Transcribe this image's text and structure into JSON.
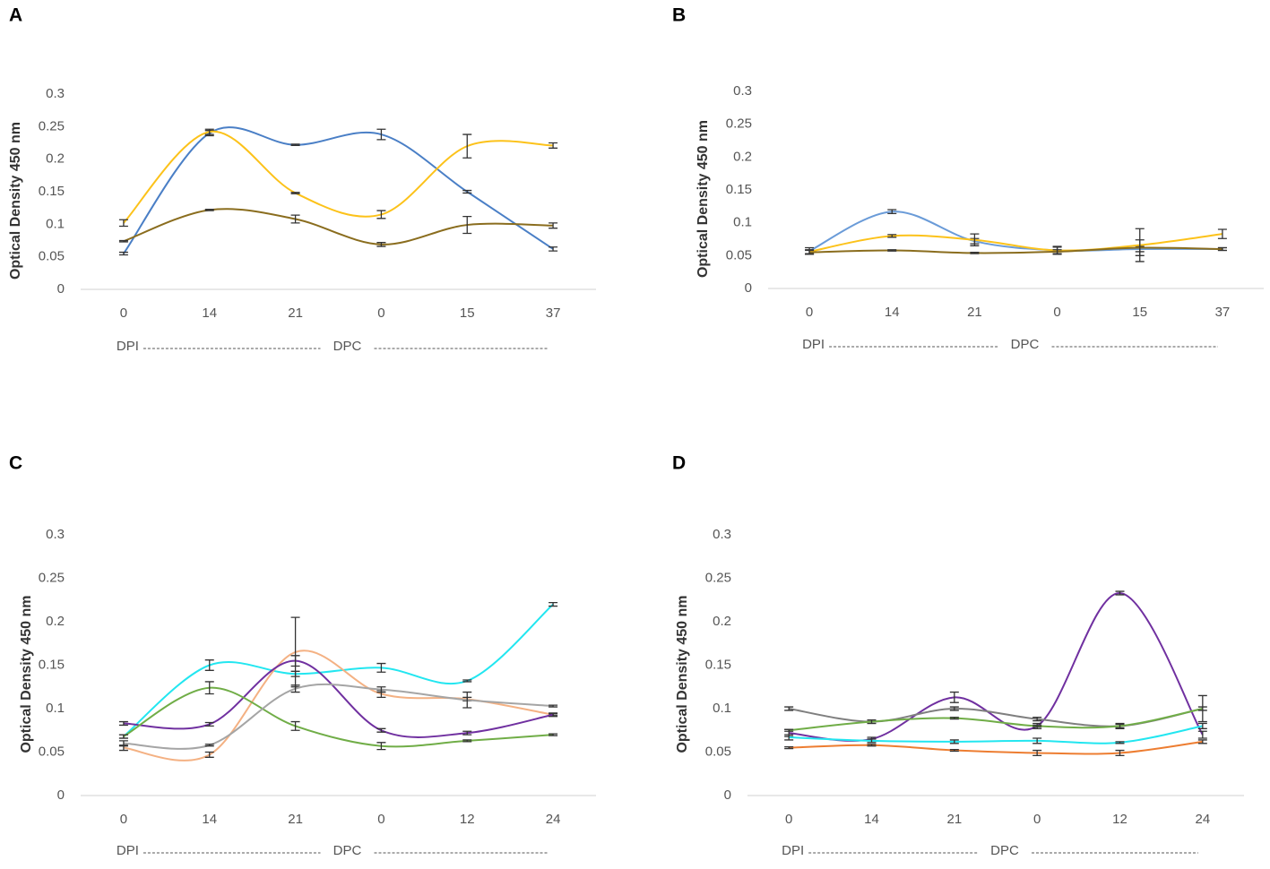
{
  "chart_data": [
    {
      "type": "line",
      "panel": "A",
      "y_label": "Optical Density 450 nm",
      "categories": [
        "0",
        "14",
        "21",
        "0",
        "15",
        "37"
      ],
      "phase_labels": [
        "DPI",
        "DPC"
      ],
      "ylim": [
        0,
        0.3
      ],
      "yticks": [
        0,
        0.05,
        0.1,
        0.15,
        0.2,
        0.25,
        0.3
      ],
      "grid": false,
      "series": [
        {
          "color": "#4a7fc6",
          "values": [
            0.055,
            0.24,
            0.222,
            0.238,
            0.15,
            0.062
          ],
          "errors": [
            0.002,
            0.004,
            0.001,
            0.008,
            0.002,
            0.003
          ]
        },
        {
          "color": "#fcc21a",
          "values": [
            0.102,
            0.242,
            0.148,
            0.115,
            0.22,
            0.221
          ],
          "errors": [
            0.005,
            0.004,
            0.001,
            0.006,
            0.018,
            0.004
          ]
        },
        {
          "color": "#8a6d1e",
          "values": [
            0.074,
            0.122,
            0.108,
            0.069,
            0.099,
            0.098
          ],
          "errors": [
            0.001,
            0.001,
            0.006,
            0.003,
            0.013,
            0.004
          ]
        }
      ]
    },
    {
      "type": "line",
      "panel": "B",
      "y_label": "Optical Density 450 nm",
      "categories": [
        "0",
        "14",
        "21",
        "0",
        "15",
        "37"
      ],
      "phase_labels": [
        "DPI",
        "DPC"
      ],
      "ylim": [
        0,
        0.3
      ],
      "yticks": [
        0,
        0.05,
        0.1,
        0.15,
        0.2,
        0.25,
        0.3
      ],
      "grid": false,
      "series": [
        {
          "color": "#6a9bd8",
          "values": [
            0.057,
            0.117,
            0.072,
            0.058,
            0.06,
            0.06
          ],
          "errors": [
            0.005,
            0.003,
            0.004,
            0.005,
            0.004,
            0.002
          ]
        },
        {
          "color": "#fcc21a",
          "values": [
            0.056,
            0.08,
            0.074,
            0.058,
            0.066,
            0.083
          ],
          "errors": [
            0.003,
            0.002,
            0.009,
            0.006,
            0.025,
            0.007
          ]
        },
        {
          "color": "#8a6d1e",
          "values": [
            0.055,
            0.058,
            0.054,
            0.056,
            0.062,
            0.06
          ],
          "errors": [
            0.003,
            0.001,
            0.001,
            0.003,
            0.012,
            0.002
          ]
        }
      ]
    },
    {
      "type": "line",
      "panel": "C",
      "y_label": "Optical Density 450 nm",
      "categories": [
        "0",
        "14",
        "21",
        "0",
        "12",
        "24"
      ],
      "phase_labels": [
        "DPI",
        "DPC"
      ],
      "ylim": [
        0,
        0.3
      ],
      "yticks": [
        0,
        0.05,
        0.1,
        0.15,
        0.2,
        0.25,
        0.3
      ],
      "grid": false,
      "series": [
        {
          "color": "#22e6f0",
          "values": [
            0.068,
            0.15,
            0.14,
            0.147,
            0.132,
            0.22
          ],
          "errors": [
            0.002,
            0.006,
            0.003,
            0.005,
            0.001,
            0.002
          ]
        },
        {
          "color": "#f4b183",
          "values": [
            0.055,
            0.047,
            0.165,
            0.117,
            0.111,
            0.093
          ],
          "errors": [
            0.003,
            0.003,
            0.04,
            0.004,
            0.002,
            0.001
          ]
        },
        {
          "color": "#7030a0",
          "values": [
            0.083,
            0.082,
            0.155,
            0.075,
            0.072,
            0.093
          ],
          "errors": [
            0.002,
            0.002,
            0.006,
            0.002,
            0.002,
            0.002
          ]
        },
        {
          "color": "#70ad47",
          "values": [
            0.068,
            0.124,
            0.08,
            0.057,
            0.063,
            0.07
          ],
          "errors": [
            0.002,
            0.007,
            0.005,
            0.004,
            0.001,
            0.001
          ]
        },
        {
          "color": "#a5a5a5",
          "values": [
            0.06,
            0.058,
            0.123,
            0.122,
            0.11,
            0.103
          ],
          "errors": [
            0.003,
            0.001,
            0.004,
            0.003,
            0.009,
            0.001
          ]
        }
      ]
    },
    {
      "type": "line",
      "panel": "D",
      "y_label": "Optical Density 450 nm",
      "categories": [
        "0",
        "14",
        "21",
        "0",
        "12",
        "24"
      ],
      "phase_labels": [
        "DPI",
        "DPC"
      ],
      "ylim": [
        0,
        0.3
      ],
      "yticks": [
        0,
        0.05,
        0.1,
        0.15,
        0.2,
        0.25,
        0.3
      ],
      "grid": false,
      "series": [
        {
          "color": "#7030a0",
          "values": [
            0.072,
            0.065,
            0.113,
            0.08,
            0.233,
            0.07
          ],
          "errors": [
            0.004,
            0.002,
            0.006,
            0.003,
            0.002,
            0.004
          ]
        },
        {
          "color": "#7f7f7f",
          "values": [
            0.1,
            0.085,
            0.1,
            0.088,
            0.08,
            0.1
          ],
          "errors": [
            0.002,
            0.002,
            0.002,
            0.002,
            0.003,
            0.015
          ]
        },
        {
          "color": "#70ad47",
          "values": [
            0.075,
            0.085,
            0.089,
            0.08,
            0.08,
            0.1
          ],
          "errors": [
            0.001,
            0.002,
            0.001,
            0.001,
            0.002,
            0.002
          ]
        },
        {
          "color": "#22e6f0",
          "values": [
            0.067,
            0.063,
            0.062,
            0.063,
            0.061,
            0.08
          ],
          "errors": [
            0.003,
            0.002,
            0.002,
            0.003,
            0.001,
            0.003
          ]
        },
        {
          "color": "#ed7d31",
          "values": [
            0.055,
            0.058,
            0.052,
            0.049,
            0.049,
            0.062
          ],
          "errors": [
            0.001,
            0.001,
            0.001,
            0.003,
            0.003,
            0.002
          ]
        }
      ]
    }
  ]
}
